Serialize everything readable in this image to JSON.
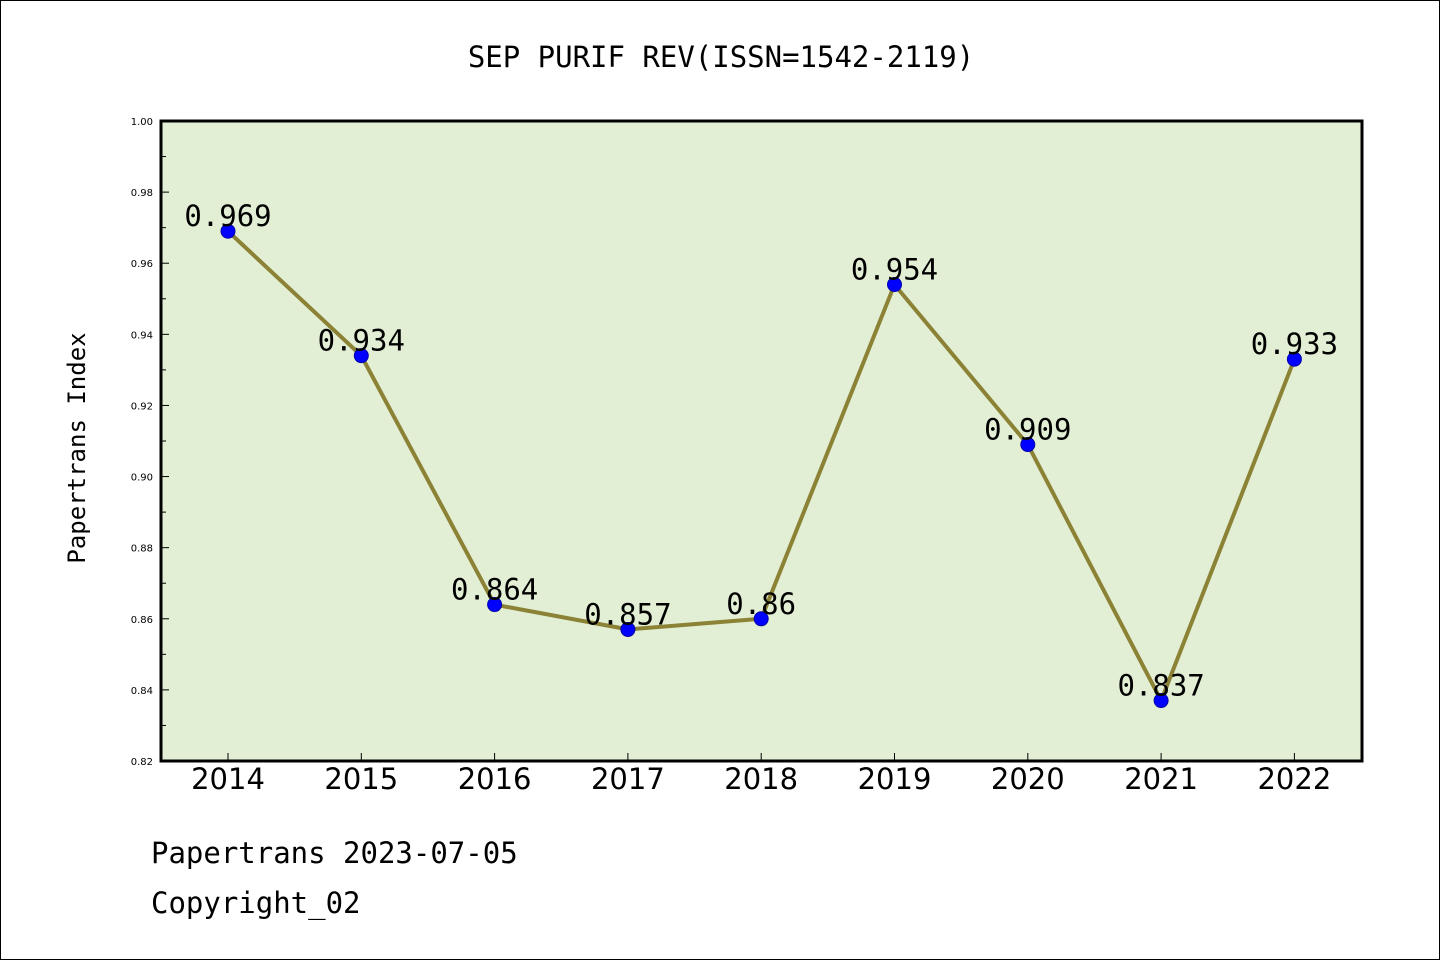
{
  "chart_data": {
    "type": "line",
    "title": "SEP PURIF REV(ISSN=1542-2119)",
    "ylabel": "Papertrans Index",
    "xlabel": "",
    "categories": [
      "2014",
      "2015",
      "2016",
      "2017",
      "2018",
      "2019",
      "2020",
      "2021",
      "2022"
    ],
    "series": [
      {
        "values": [
          0.969,
          0.934,
          0.864,
          0.857,
          0.86,
          0.954,
          0.909,
          0.837,
          0.933
        ],
        "labels": [
          "0.969",
          "0.934",
          "0.864",
          "0.857",
          "0.86",
          "0.954",
          "0.909",
          "0.837",
          "0.933"
        ]
      }
    ],
    "ylim": [
      0.82,
      1.0
    ],
    "yticks": [
      "0.82",
      "0.84",
      "0.86",
      "0.88",
      "0.90",
      "0.92",
      "0.94",
      "0.96",
      "0.98",
      "1.00"
    ],
    "grid": false,
    "legend": "none",
    "colors": {
      "plot_background": "#e2efd4",
      "line": "#8b8236",
      "marker": "#0000ff"
    }
  },
  "footer": {
    "line1": "Papertrans 2023-07-05",
    "line2": "Copyright_02"
  }
}
